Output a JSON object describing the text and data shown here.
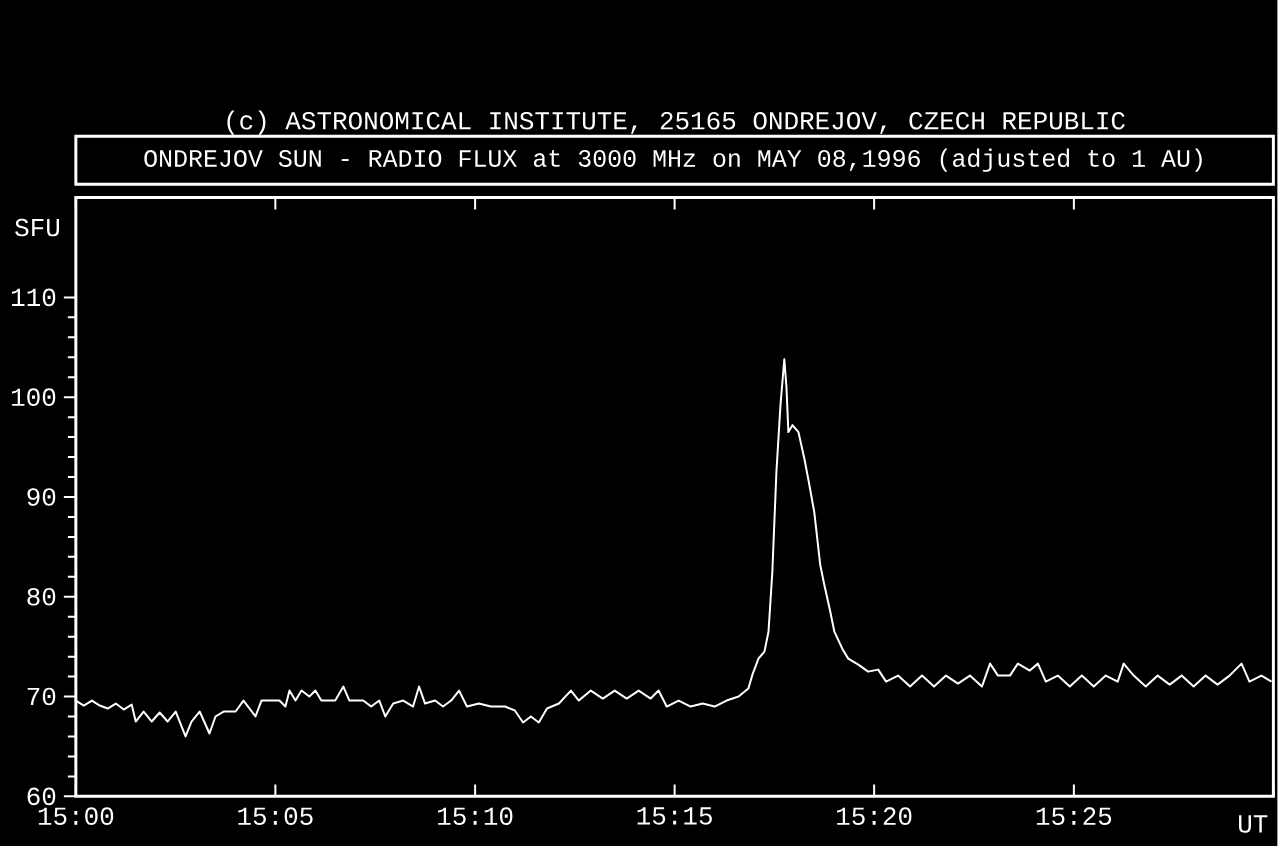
{
  "chart_data": {
    "type": "line",
    "title": "ONDREJOV SUN - RADIO FLUX at 3000 MHz on MAY 08,1996 (adjusted to 1 AU)",
    "annotations": [
      "(c) ASTRONOMICAL INSTITUTE, 25165 ONDREJOV, CZECH REPUBLIC"
    ],
    "xlabel": "UT",
    "ylabel": "SFU",
    "xlim": [
      15,
      15.5
    ],
    "ylim": [
      60,
      120
    ],
    "xticks": [
      {
        "value": 15,
        "label": "15:00"
      },
      {
        "value": 15.0833,
        "label": "15:05"
      },
      {
        "value": 15.1667,
        "label": "15:10"
      },
      {
        "value": 15.25,
        "label": "15:15"
      },
      {
        "value": 15.3333,
        "label": "15:20"
      },
      {
        "value": 15.4167,
        "label": "15:25"
      },
      {
        "value": 15.5,
        "label": null
      }
    ],
    "yticks": [
      60,
      70,
      80,
      90,
      100,
      110
    ],
    "grid": false,
    "marker": "none",
    "line_style": "solid",
    "x": [
      15.0,
      15.0033,
      15.0067,
      15.01,
      15.0133,
      15.0167,
      15.02,
      15.0233,
      15.025,
      15.0283,
      15.0317,
      15.035,
      15.0383,
      15.0417,
      15.0458,
      15.0483,
      15.0517,
      15.0558,
      15.0583,
      15.0617,
      15.0667,
      15.07,
      15.0725,
      15.075,
      15.0775,
      15.085,
      15.0875,
      15.0892,
      15.0917,
      15.0942,
      15.0975,
      15.1,
      15.1025,
      15.1083,
      15.1117,
      15.1142,
      15.12,
      15.1233,
      15.1267,
      15.1292,
      15.1325,
      15.1367,
      15.1408,
      15.1433,
      15.1458,
      15.15,
      15.1533,
      15.1567,
      15.16,
      15.1633,
      15.1683,
      15.1733,
      15.1792,
      15.1833,
      15.1867,
      15.19,
      15.1933,
      15.1967,
      15.2017,
      15.2067,
      15.21,
      15.215,
      15.22,
      15.225,
      15.23,
      15.235,
      15.24,
      15.2433,
      15.2467,
      15.2517,
      15.2567,
      15.2617,
      15.2667,
      15.2717,
      15.2767,
      15.2808,
      15.2825,
      15.285,
      15.2875,
      15.2892,
      15.2908,
      15.2925,
      15.2942,
      15.2958,
      15.2967,
      15.2975,
      15.2992,
      15.3017,
      15.3042,
      15.3058,
      15.3083,
      15.3108,
      15.3125,
      15.315,
      15.3167,
      15.32,
      15.3225,
      15.3267,
      15.3308,
      15.335,
      15.3383,
      15.3433,
      15.3483,
      15.3533,
      15.3583,
      15.3633,
      15.3683,
      15.3733,
      15.3783,
      15.3817,
      15.385,
      15.39,
      15.3933,
      15.3983,
      15.4017,
      15.405,
      15.41,
      15.415,
      15.42,
      15.425,
      15.43,
      15.435,
      15.4375,
      15.4417,
      15.4467,
      15.4517,
      15.4567,
      15.4617,
      15.4667,
      15.4717,
      15.4767,
      15.4817,
      15.4867,
      15.49,
      15.495,
      15.4992
    ],
    "series": [
      {
        "color": "#ffffff",
        "values": [
          69.6,
          69.1,
          69.6,
          69.1,
          68.8,
          69.3,
          68.7,
          69.2,
          67.5,
          68.5,
          67.5,
          68.4,
          67.5,
          68.5,
          66.0,
          67.5,
          68.5,
          66.3,
          68.0,
          68.5,
          68.5,
          69.6,
          68.8,
          68.0,
          69.6,
          69.6,
          69.0,
          70.6,
          69.6,
          70.6,
          70.0,
          70.6,
          69.6,
          69.6,
          71.0,
          69.6,
          69.6,
          69.0,
          69.6,
          68.0,
          69.3,
          69.6,
          69.0,
          71.0,
          69.3,
          69.6,
          69.0,
          69.6,
          70.6,
          69.0,
          69.3,
          69.0,
          69.0,
          68.6,
          67.4,
          68.0,
          67.4,
          68.8,
          69.3,
          70.6,
          69.6,
          70.6,
          69.8,
          70.6,
          69.8,
          70.6,
          69.8,
          70.6,
          69.0,
          69.6,
          69.0,
          69.3,
          69.0,
          69.6,
          70.0,
          70.8,
          72.2,
          73.8,
          74.5,
          76.5,
          82.5,
          92.5,
          99.2,
          103.8,
          101.0,
          96.5,
          97.2,
          96.5,
          93.8,
          91.8,
          88.5,
          83.2,
          81.2,
          78.5,
          76.5,
          74.8,
          73.8,
          73.2,
          72.5,
          72.7,
          71.5,
          72.1,
          71.0,
          72.1,
          71.0,
          72.1,
          71.3,
          72.1,
          71.0,
          73.3,
          72.1,
          72.1,
          73.3,
          72.6,
          73.3,
          71.5,
          72.1,
          71.0,
          72.1,
          71.0,
          72.1,
          71.5,
          73.3,
          72.1,
          71.0,
          72.1,
          71.2,
          72.1,
          71.0,
          72.1,
          71.2,
          72.1,
          73.3,
          71.5,
          72.1,
          71.5
        ]
      }
    ]
  }
}
